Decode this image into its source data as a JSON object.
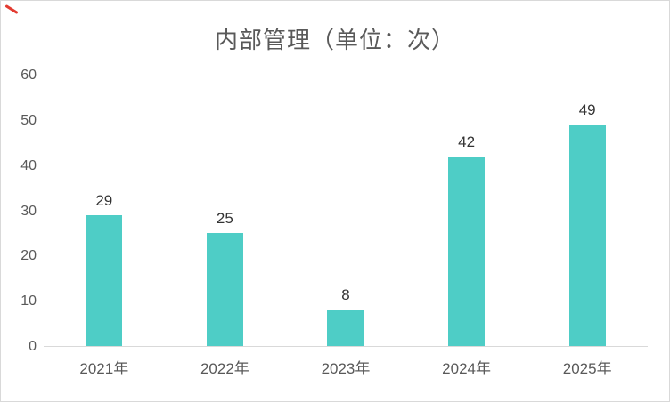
{
  "frame": {
    "border_color": "#d9d9d9",
    "corner_mark_color": "#e33b30"
  },
  "chart_data": {
    "type": "bar",
    "title": "内部管理（单位：次）",
    "categories": [
      "2021年",
      "2022年",
      "2023年",
      "2024年",
      "2025年"
    ],
    "values": [
      29,
      25,
      8,
      42,
      49
    ],
    "xlabel": "",
    "ylabel": "",
    "ylim": [
      0,
      60
    ],
    "ytick_step": 10,
    "grid": false,
    "legend": false,
    "bar_color": "#4ecdc6",
    "title_color": "#595959",
    "axis_label_color": "#595959",
    "data_label_color": "#333333"
  }
}
